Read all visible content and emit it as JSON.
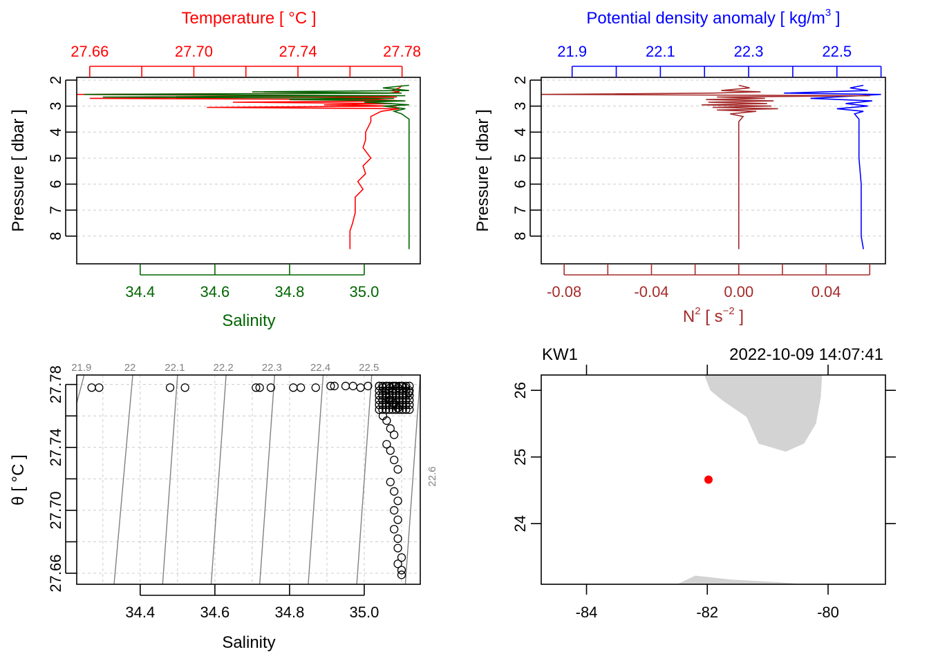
{
  "colors": {
    "temperature": "#ff0000",
    "salinity": "#006400",
    "density": "#0000ff",
    "n2": "#a52a2a",
    "land": "#d3d3d3",
    "station": "#ff0000",
    "isopycnal": "#808080",
    "grid": "#cccccc",
    "axis": "#000000"
  },
  "chart_data": [
    {
      "id": "profile-temperature-salinity",
      "type": "line",
      "top_axis_title": "Temperature [ °C ]",
      "top_ticks": [
        "27.66",
        "27.70",
        "27.74",
        "27.78"
      ],
      "top_range": [
        27.655,
        27.787
      ],
      "bottom_axis_title": "Salinity",
      "bottom_ticks": [
        "34.4",
        "34.6",
        "34.8",
        "35.0"
      ],
      "bottom_range": [
        34.23,
        35.15
      ],
      "ylabel": "Pressure [ dbar ]",
      "y_ticks": [
        "2",
        "3",
        "4",
        "5",
        "6",
        "7",
        "8"
      ],
      "ylim": [
        8.8,
        2
      ],
      "series": [
        {
          "name": "Temperature",
          "axis": "top",
          "pressure": [
            2.2,
            2.3,
            2.4,
            2.45,
            2.5,
            2.55,
            2.6,
            2.65,
            2.7,
            2.75,
            2.8,
            2.85,
            2.9,
            2.95,
            3.0,
            3.05,
            3.1,
            3.2,
            3.4,
            3.6,
            3.8,
            4.0,
            4.3,
            4.6,
            5.0,
            5.3,
            5.6,
            5.9,
            6.2,
            6.5,
            6.8,
            7.1,
            7.5,
            7.8,
            8.1,
            8.3,
            8.5
          ],
          "values": [
            27.78,
            27.779,
            27.776,
            27.779,
            27.775,
            27.655,
            27.74,
            27.778,
            27.66,
            27.77,
            27.78,
            27.715,
            27.776,
            27.75,
            27.778,
            27.705,
            27.779,
            27.772,
            27.768,
            27.768,
            27.767,
            27.766,
            27.766,
            27.765,
            27.768,
            27.765,
            27.766,
            27.763,
            27.765,
            27.762,
            27.762,
            27.762,
            27.761,
            27.76,
            27.76,
            27.76,
            27.76
          ]
        },
        {
          "name": "Salinity",
          "axis": "bottom",
          "pressure": [
            2.2,
            2.3,
            2.4,
            2.45,
            2.5,
            2.55,
            2.6,
            2.65,
            2.7,
            2.75,
            2.8,
            2.85,
            2.9,
            2.95,
            3.0,
            3.1,
            3.2,
            3.3,
            3.5,
            4.0,
            5.0,
            6.0,
            7.0,
            8.0,
            8.5
          ],
          "values": [
            35.12,
            35.05,
            35.12,
            34.7,
            35.1,
            34.25,
            35.11,
            34.3,
            35.08,
            34.8,
            35.11,
            35.0,
            35.07,
            35.12,
            35.05,
            35.11,
            35.08,
            35.1,
            35.12,
            35.12,
            35.12,
            35.12,
            35.12,
            35.12,
            35.12
          ]
        }
      ]
    },
    {
      "id": "profile-density-n2",
      "type": "line",
      "top_axis_title": "Potential density anomaly [ kg/m",
      "top_axis_sup": "3",
      "top_axis_close": " ]",
      "top_ticks": [
        "21.9",
        "22.1",
        "22.3",
        "22.5"
      ],
      "top_range": [
        21.83,
        22.61
      ],
      "bottom_axis_title": "N",
      "bottom_axis_sup": "2",
      "bottom_axis_unit": " [ s",
      "bottom_axis_unit_sup": "−2",
      "bottom_axis_unit_close": " ]",
      "bottom_ticks": [
        "-0.08",
        "-0.04",
        "0.00",
        "0.04"
      ],
      "bottom_range": [
        -0.0905,
        0.0672
      ],
      "ylabel": "Pressure [ dbar ]",
      "y_ticks": [
        "2",
        "3",
        "4",
        "5",
        "6",
        "7",
        "8"
      ],
      "ylim": [
        8.8,
        2
      ],
      "series": [
        {
          "name": "Density",
          "axis": "top",
          "pressure": [
            2.2,
            2.3,
            2.4,
            2.5,
            2.55,
            2.6,
            2.7,
            2.8,
            2.9,
            3.0,
            3.1,
            3.2,
            3.3,
            3.5,
            4.0,
            5.0,
            6.0,
            7.0,
            8.0,
            8.5
          ],
          "values": [
            22.56,
            22.53,
            22.57,
            22.38,
            22.6,
            22.55,
            22.44,
            22.58,
            22.52,
            22.57,
            22.5,
            22.56,
            22.54,
            22.55,
            22.55,
            22.55,
            22.555,
            22.555,
            22.555,
            22.56
          ]
        },
        {
          "name": "N2",
          "axis": "bottom",
          "pressure": [
            2.2,
            2.3,
            2.4,
            2.45,
            2.5,
            2.55,
            2.6,
            2.65,
            2.7,
            2.75,
            2.8,
            2.85,
            2.9,
            2.95,
            3.0,
            3.05,
            3.1,
            3.15,
            3.2,
            3.3,
            3.4,
            3.6,
            4.0,
            5.0,
            6.0,
            7.0,
            8.0,
            8.5
          ],
          "values": [
            0.0,
            0.005,
            -0.008,
            0.01,
            -0.012,
            -0.0905,
            0.06,
            -0.01,
            0.012,
            -0.015,
            0.016,
            -0.014,
            0.013,
            -0.017,
            0.015,
            -0.012,
            0.018,
            -0.01,
            0.008,
            -0.004,
            0.002,
            0.0,
            0.0,
            0.0,
            0.0,
            0.0,
            0.0,
            0.0
          ]
        }
      ]
    },
    {
      "id": "ts-diagram",
      "type": "scatter",
      "xlabel": "Salinity",
      "ylabel": "θ [ °C ]",
      "x_ticks": [
        "34.4",
        "34.6",
        "34.8",
        "35.0"
      ],
      "xlim": [
        34.23,
        35.15
      ],
      "y_ticks": [
        "27.66",
        "27.70",
        "27.74",
        "27.78"
      ],
      "ylim": [
        27.653,
        27.786
      ],
      "isopycnal_labels": [
        "21.9",
        "22",
        "22.1",
        "22.2",
        "22.3",
        "22.4",
        "22.5",
        "22.6"
      ],
      "isopycnal_salinity_at_top": [
        34.25,
        34.38,
        34.5,
        34.63,
        34.76,
        34.89,
        35.02,
        35.15
      ],
      "isopycnal_salinity_at_bottom": [
        34.1,
        34.33,
        34.46,
        34.59,
        34.72,
        34.85,
        34.98,
        35.11
      ],
      "points_upper_row": {
        "salinity": [
          34.27,
          34.29,
          34.48,
          34.52,
          34.71,
          34.72,
          34.75,
          34.81,
          34.83,
          34.87,
          34.91,
          34.92,
          34.95,
          34.97,
          34.99,
          35.01,
          35.04
        ],
        "temperature": [
          27.778,
          27.778,
          27.778,
          27.778,
          27.778,
          27.778,
          27.778,
          27.778,
          27.778,
          27.778,
          27.779,
          27.779,
          27.779,
          27.779,
          27.778,
          27.779,
          27.779
        ]
      },
      "points_column": {
        "salinity": [
          35.05,
          35.06,
          35.07,
          35.08,
          35.09,
          35.1,
          35.11,
          35.12,
          35.06,
          35.07,
          35.08,
          35.09,
          35.05,
          35.06,
          35.07,
          35.08,
          35.06,
          35.07,
          35.08,
          35.09,
          35.07,
          35.08,
          35.09,
          35.08,
          35.09,
          35.08,
          35.09,
          35.09,
          35.1,
          35.09,
          35.1,
          35.1
        ],
        "temperature": [
          27.778,
          27.779,
          27.778,
          27.779,
          27.778,
          27.779,
          27.778,
          27.775,
          27.772,
          27.77,
          27.768,
          27.765,
          27.76,
          27.757,
          27.752,
          27.748,
          27.742,
          27.738,
          27.732,
          27.726,
          27.718,
          27.712,
          27.706,
          27.7,
          27.694,
          27.688,
          27.682,
          27.676,
          27.67,
          27.666,
          27.662,
          27.659
        ]
      }
    },
    {
      "id": "station-map",
      "type": "scatter",
      "station": "KW1",
      "datetime": "2022-10-09 14:07:41",
      "x_ticks": [
        "-84",
        "-82",
        "-80"
      ],
      "xlim": [
        -84.75,
        -79.05
      ],
      "y_ticks": [
        "24",
        "25",
        "26"
      ],
      "ylim": [
        23.09,
        26.23
      ],
      "station_lon": -81.98,
      "station_lat": 24.66,
      "land_polygons": [
        {
          "name": "florida-south",
          "lon": [
            -82.05,
            -80.1,
            -80.12,
            -80.2,
            -80.4,
            -80.7,
            -81.15,
            -81.35,
            -81.75,
            -81.95
          ],
          "lat": [
            26.23,
            26.23,
            25.9,
            25.5,
            25.2,
            25.08,
            25.2,
            25.6,
            25.85,
            26.0
          ]
        },
        {
          "name": "cuba-north",
          "lon": [
            -82.5,
            -82.2,
            -81.6,
            -80.8,
            -80.4,
            -82.5
          ],
          "lat": [
            23.09,
            23.22,
            23.16,
            23.12,
            23.09,
            23.09
          ]
        }
      ]
    }
  ]
}
